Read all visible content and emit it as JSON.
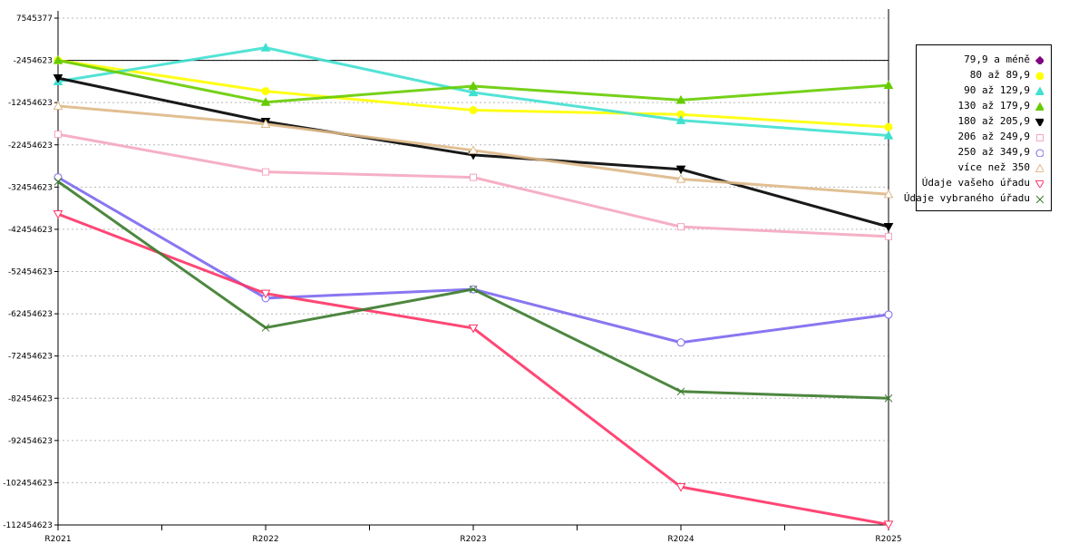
{
  "chart_data": {
    "type": "line",
    "categories": [
      "R2021",
      "R2022",
      "R2023",
      "R2024",
      "R2025"
    ],
    "ylim": [
      -112454623,
      7545377
    ],
    "yticks": [
      7545377,
      -2454623,
      -12454623,
      -22454623,
      -32454623,
      -42454623,
      -52454623,
      -62454623,
      -72454623,
      -82454623,
      -92454623,
      -102454623,
      -112454623
    ],
    "ytick_labels": [
      "7545377",
      "-2454623",
      "-12454623",
      "-22454623",
      "-32454623",
      "-42454623",
      "-52454623",
      "-62454623",
      "-72454623",
      "-82454623",
      "-92454623",
      "-102454623",
      "-112454623"
    ],
    "reference_line": -2454623,
    "grid": "horizontal-dashed",
    "legend_position": "right",
    "series": [
      {
        "name": "79,9 a méně",
        "color": "#800080",
        "marker": "diamond",
        "values": [
          null,
          null,
          null,
          null,
          null
        ]
      },
      {
        "name": "80 až 89,9",
        "color": "#ffff00",
        "marker": "circle",
        "values": [
          -2454623,
          -9754623,
          -14254623,
          -15254623,
          -18254623
        ]
      },
      {
        "name": "90 až 129,9",
        "color": "#40e0d0",
        "marker": "triangle-up",
        "values": [
          -7454623,
          545377,
          -10054623,
          -16654623,
          -20254623
        ]
      },
      {
        "name": "130 až 179,9",
        "color": "#66cc00",
        "marker": "triangle-up",
        "values": [
          -2454623,
          -12354623,
          -8554623,
          -11854623,
          -8354623
        ]
      },
      {
        "name": "180 až 205,9",
        "color": "#000000",
        "marker": "triangle-down",
        "values": [
          -6654623,
          -16954623,
          -24854623,
          -28254623,
          -41854623
        ]
      },
      {
        "name": "206 až 249,9",
        "color": "#f4a7bf",
        "marker": "square",
        "values": [
          -19954623,
          -28854623,
          -30154623,
          -41854623,
          -44154623
        ]
      },
      {
        "name": "250 až 349,9",
        "color": "#7b68ee",
        "marker": "circle",
        "values": [
          -30154623,
          -58754623,
          -56654623,
          -69254623,
          -62654623
        ]
      },
      {
        "name": "více než 350",
        "color": "#deb887",
        "marker": "triangle-up",
        "values": [
          -13254623,
          -17554623,
          -23754623,
          -30554623,
          -34154623
        ]
      },
      {
        "name": "Údaje vašeho úřadu",
        "color": "#ff3366",
        "marker": "triangle-down",
        "values": [
          -38854623,
          -57654623,
          -65854623,
          -103454623,
          -112354623
        ]
      },
      {
        "name": "Údaje vybraného úřadu",
        "color": "#3a7a2a",
        "marker": "x",
        "values": [
          -31154623,
          -65754623,
          -56654623,
          -80854623,
          -82454623
        ]
      }
    ]
  }
}
